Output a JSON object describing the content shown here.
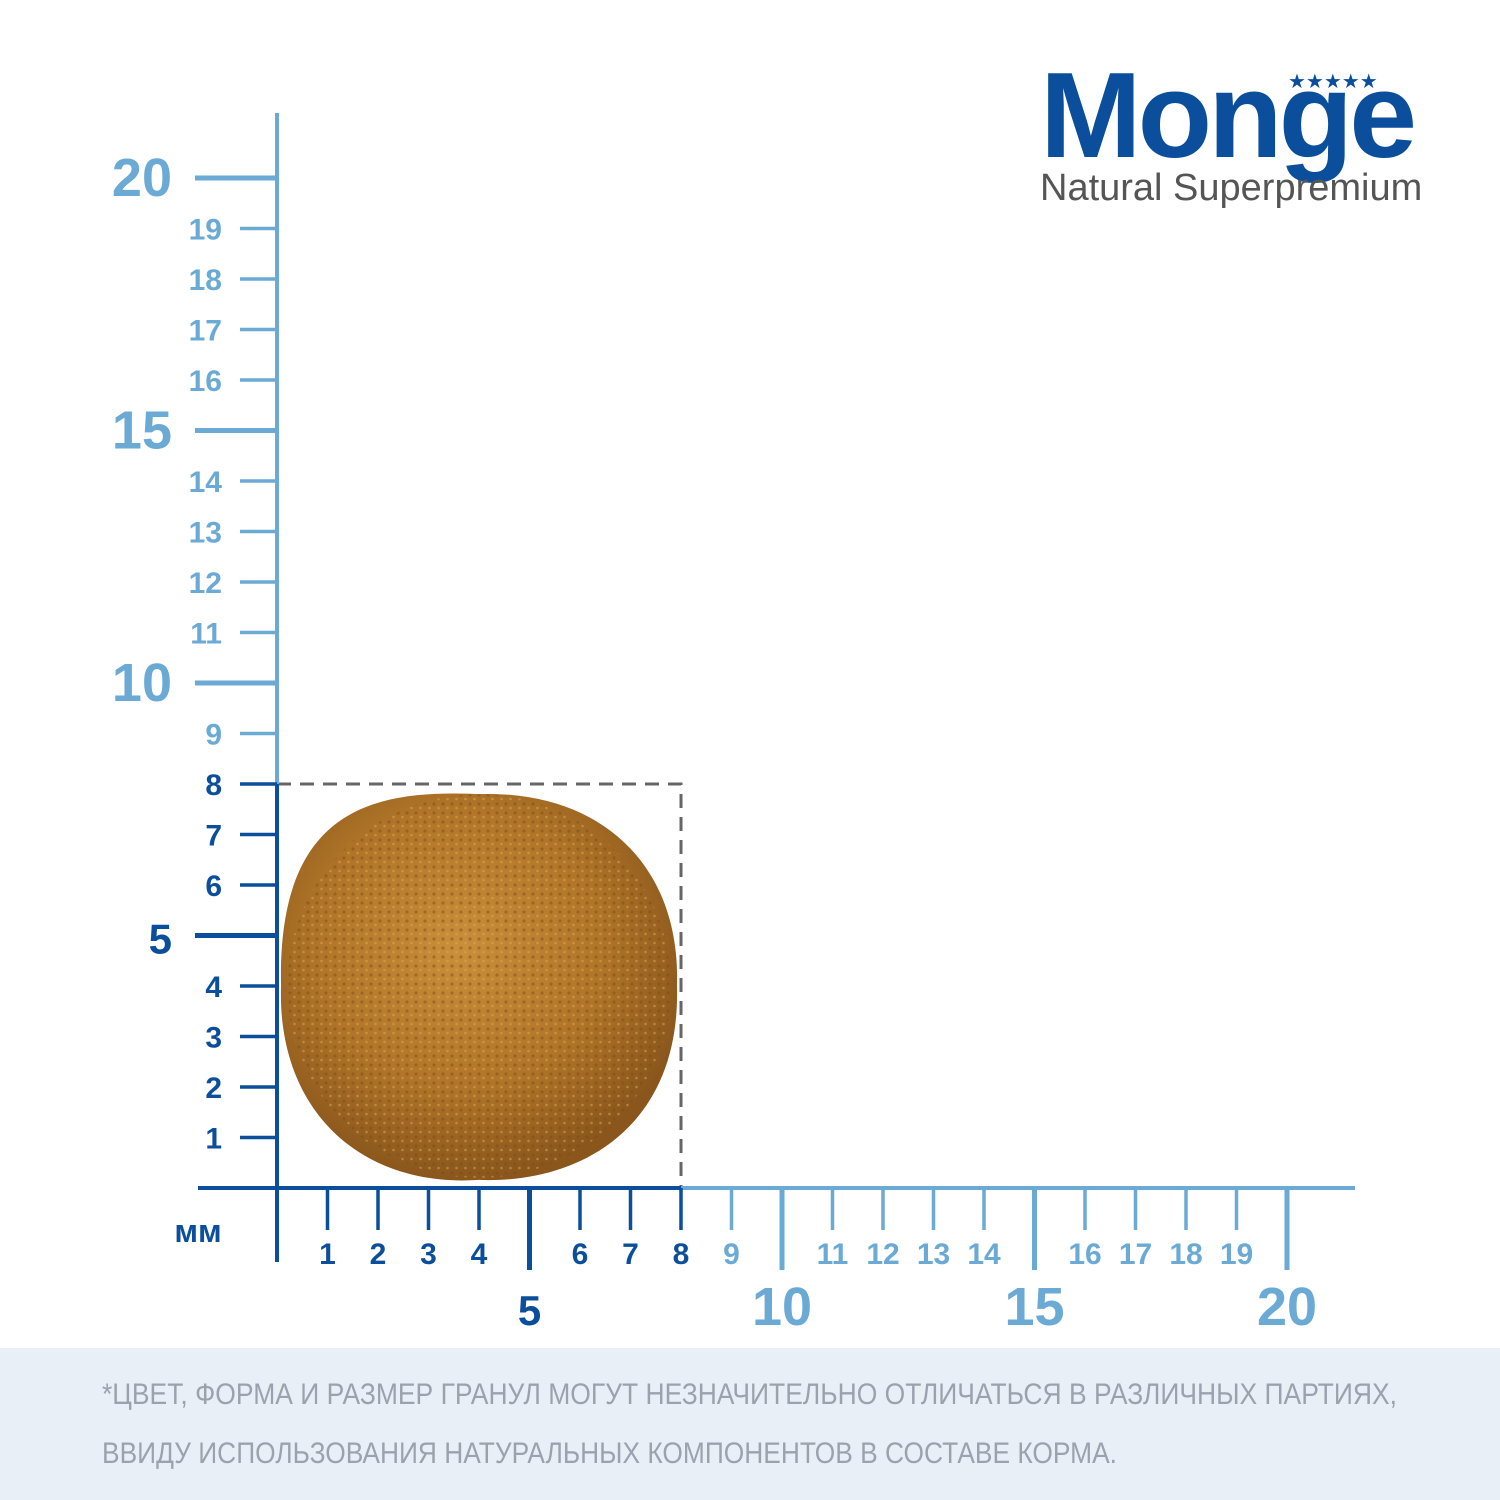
{
  "brand": {
    "name": "Monge",
    "tagline": "Natural Superpremium"
  },
  "ruler": {
    "unit": "мм",
    "x_ticks": [
      1,
      2,
      3,
      4,
      5,
      6,
      7,
      8,
      9,
      10,
      11,
      12,
      13,
      14,
      15,
      16,
      17,
      18,
      19,
      20
    ],
    "y_ticks": [
      1,
      2,
      3,
      4,
      5,
      6,
      7,
      8,
      9,
      10,
      11,
      12,
      13,
      14,
      15,
      16,
      17,
      18,
      19,
      20
    ]
  },
  "kibble": {
    "size": 8
  },
  "disclaimer": [
    "*ЦВЕТ, ФОРМА И РАЗМЕР ГРАНУЛ МОГУТ НЕЗНАЧИТЕЛЬНО ОТЛИЧАТЬСЯ В РАЗЛИЧНЫХ ПАРТИЯХ,",
    "ВВИДУ ИСПОЛЬЗОВАНИЯ НАТУРАЛЬНЫХ КОМПОНЕНТОВ В СОСТАВЕ КОРМА."
  ]
}
